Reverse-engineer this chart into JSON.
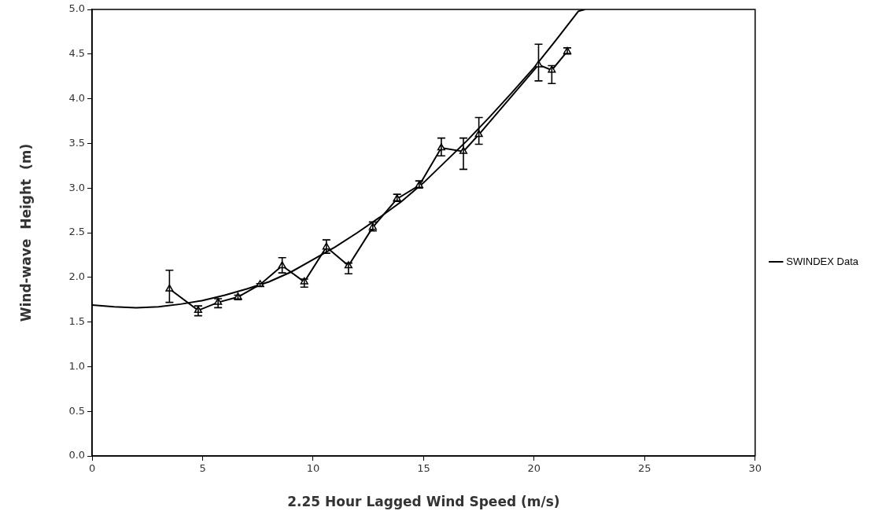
{
  "chart_data": {
    "type": "line",
    "xlabel": "2.25 Hour Lagged Wind Speed (m/s)",
    "ylabel": "Wind-wave  Height  (m)",
    "xlim": [
      0,
      30
    ],
    "xticks": [
      0,
      5,
      10,
      15,
      20,
      25,
      30
    ],
    "ylim": [
      0,
      5
    ],
    "yticks": [
      {
        "value": 0,
        "label": "0.0"
      },
      {
        "value": 0.5,
        "label": "0.5"
      },
      {
        "value": 1,
        "label": "1.0"
      },
      {
        "value": 1.5,
        "label": "1.5"
      },
      {
        "value": 2,
        "label": "2.0"
      },
      {
        "value": 2.5,
        "label": "2.5"
      },
      {
        "value": 3,
        "label": "3.0"
      },
      {
        "value": 3.5,
        "label": "3.5"
      },
      {
        "value": 4,
        "label": "4.0"
      },
      {
        "value": 4.5,
        "label": "4.5"
      },
      {
        "value": 5,
        "label": "5.0"
      }
    ],
    "legend": "right",
    "grid": false,
    "series": [
      {
        "name": "SWINDEX Data",
        "color": "#000000",
        "marker": "triangle",
        "x": [
          3.5,
          4.8,
          5.7,
          6.6,
          7.6,
          8.6,
          9.6,
          10.6,
          11.6,
          12.7,
          13.8,
          14.8,
          15.8,
          16.8,
          17.5,
          20.2,
          20.8,
          21.5
        ],
        "values": [
          1.87,
          1.63,
          1.72,
          1.78,
          1.92,
          2.13,
          1.95,
          2.34,
          2.13,
          2.56,
          2.88,
          3.03,
          3.45,
          3.41,
          3.6,
          4.38,
          4.32,
          4.53
        ],
        "errors": [
          [
            1.72,
            2.08
          ],
          [
            1.57,
            1.68
          ],
          [
            1.66,
            1.76
          ],
          [
            1.75,
            1.8
          ],
          [
            1.9,
            1.93
          ],
          [
            2.05,
            2.22
          ],
          [
            1.89,
            1.98
          ],
          [
            2.27,
            2.42
          ],
          [
            2.04,
            2.16
          ],
          [
            2.52,
            2.62
          ],
          [
            2.85,
            2.93
          ],
          [
            3.0,
            3.08
          ],
          [
            3.36,
            3.56
          ],
          [
            3.21,
            3.56
          ],
          [
            3.49,
            3.79
          ],
          [
            4.2,
            4.61
          ],
          [
            4.17,
            4.37
          ],
          [
            4.5,
            4.57
          ]
        ]
      },
      {
        "type": "line",
        "color": "#000000",
        "marker": "none",
        "x": [
          0,
          1,
          2,
          3,
          4,
          5,
          6,
          7,
          8,
          9,
          10,
          11,
          12,
          13,
          14,
          15,
          16,
          17,
          18,
          19,
          20,
          21,
          22,
          22.3
        ],
        "values": [
          1.69,
          1.67,
          1.66,
          1.67,
          1.7,
          1.74,
          1.8,
          1.87,
          1.95,
          2.06,
          2.2,
          2.34,
          2.5,
          2.67,
          2.85,
          3.06,
          3.3,
          3.54,
          3.8,
          4.07,
          4.35,
          4.66,
          4.98,
          5.0
        ]
      }
    ]
  }
}
